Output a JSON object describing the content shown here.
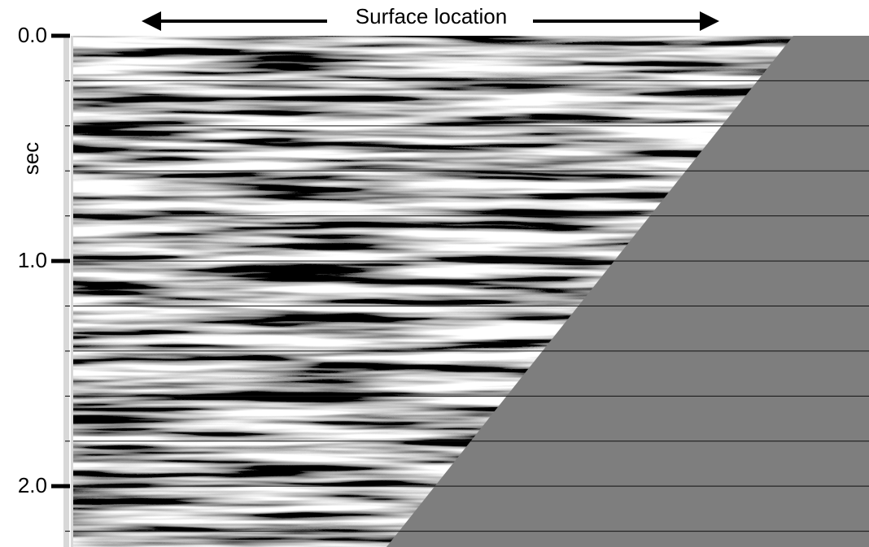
{
  "chart_data": {
    "type": "seismic-section",
    "title": "Surface location",
    "ylabel": "sec",
    "ylim": [
      0,
      2.27
    ],
    "y_inverted": true,
    "yticks": [
      {
        "value": 0,
        "label": "0.0"
      },
      {
        "value": 1,
        "label": "1.0"
      },
      {
        "value": 2,
        "label": "2.0"
      }
    ],
    "minor_yticks": [
      0.2,
      0.4,
      0.6,
      0.8,
      1.0,
      1.2,
      1.4,
      1.6,
      1.8,
      2.0,
      2.2
    ],
    "grid": true
  }
}
